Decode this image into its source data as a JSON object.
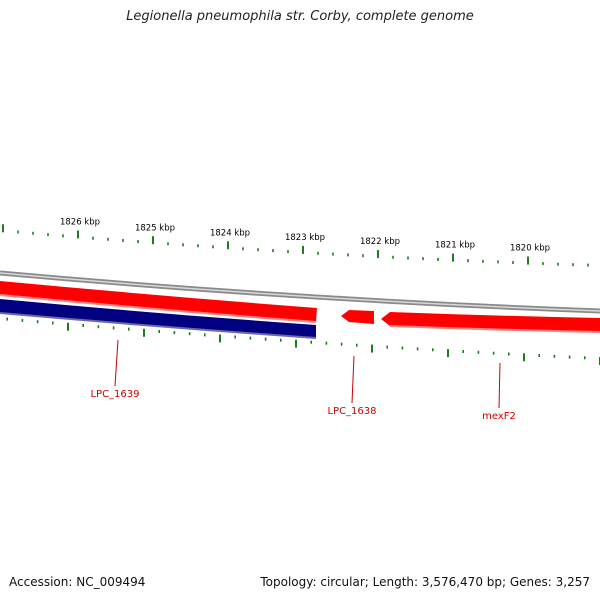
{
  "title": "Legionella pneumophila str. Corby, complete genome",
  "footer": {
    "accession": "Accession: NC_009494",
    "summary": "Topology: circular; Length: 3,576,470 bp; Genes: 3,257"
  },
  "colors": {
    "backbone": "#8a8a8a",
    "forward_gene": "#ff0000",
    "reverse_gene": "#000080",
    "ticks": "#1e7b1e",
    "gene_label": "#cc0000",
    "tick_label": "#000000"
  },
  "scale_labels": [
    "1826 kbp",
    "1825 kbp",
    "1824 kbp",
    "1823 kbp",
    "1822 kbp",
    "1821 kbp",
    "1820 kbp"
  ],
  "gene_labels": [
    {
      "name": "LPC_1639",
      "strand": "reverse"
    },
    {
      "name": "LPC_1638",
      "strand": "forward"
    },
    {
      "name": "mexF2",
      "strand": "forward"
    }
  ]
}
